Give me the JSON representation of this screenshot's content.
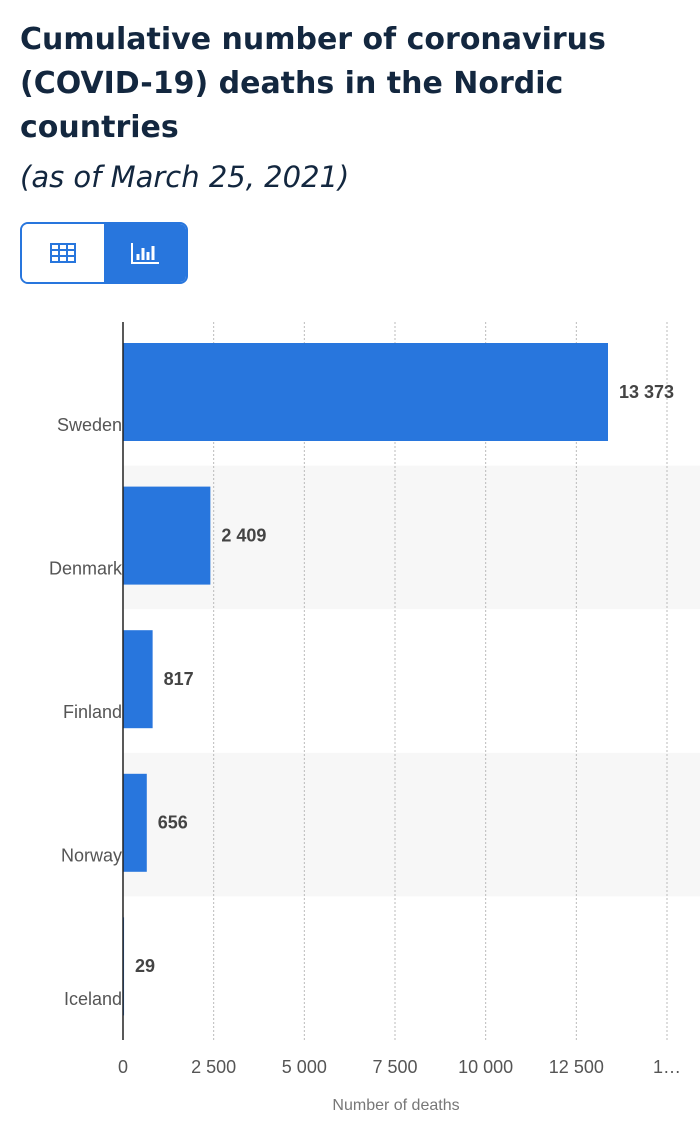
{
  "chart_data": {
    "type": "bar",
    "orientation": "horizontal",
    "title": "Cumulative number of coronavirus (COVID-19) deaths in the Nordic countries",
    "subtitle": "(as of March 25, 2021)",
    "categories": [
      "Sweden",
      "Denmark",
      "Finland",
      "Norway",
      "Iceland"
    ],
    "values": [
      13373,
      2409,
      817,
      656,
      29
    ],
    "value_labels": [
      "13 373",
      "2 409",
      "817",
      "656",
      "29"
    ],
    "color": "#2876dd",
    "xlabel": "Number of deaths",
    "xlim": [
      0,
      15000
    ],
    "xticks": [
      0,
      {
        "value": 2500,
        "label": "2 500"
      },
      {
        "value": 5000,
        "label": "5 000"
      },
      {
        "value": 7500,
        "label": "7 500"
      },
      {
        "value": 10000,
        "label": "10 000"
      },
      {
        "value": 12500,
        "label": "12 500"
      },
      {
        "value": 15000,
        "label": "1…"
      }
    ],
    "grid": true
  }
}
